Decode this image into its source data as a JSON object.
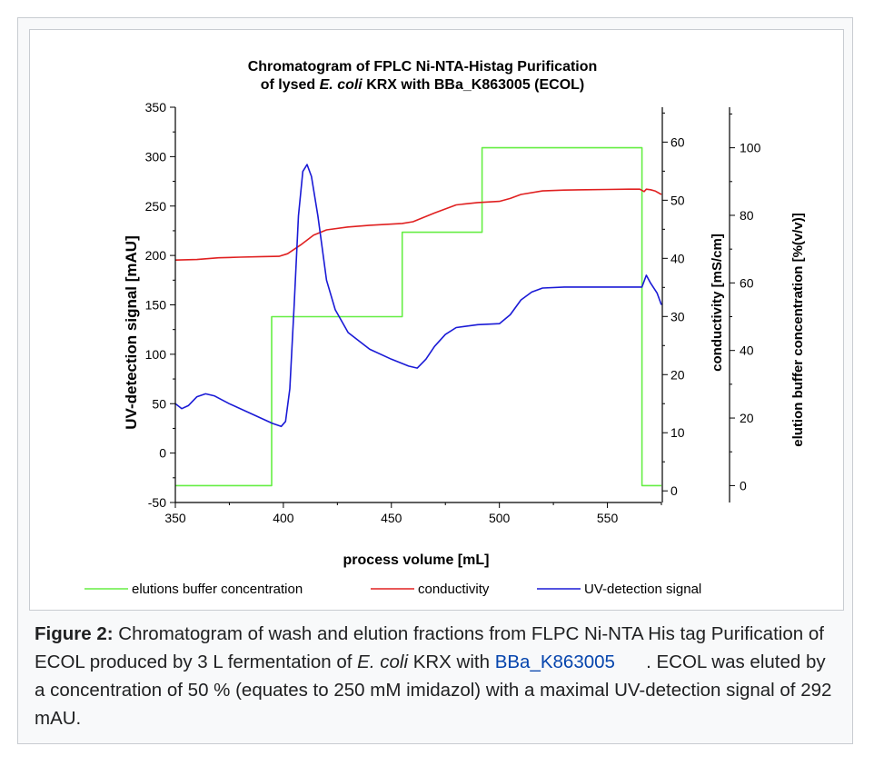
{
  "chart_data": {
    "type": "line",
    "title_line1": "Chromatogram of FPLC Ni-NTA-Histag Purification",
    "title_line2_pre": "of lysed ",
    "title_line2_italic": "E. coli",
    "title_line2_post": " KRX with BBa_K863005 (ECOL)",
    "xlabel": "process volume [mL]",
    "ylabel_left": "UV-detection signal [mAU]",
    "ylabel_right1": "conductivity [mS/cm]",
    "ylabel_right2": "elution buffer concentration [%(v/v)]",
    "xlim": [
      350,
      575
    ],
    "ylim_left": [
      -50,
      350
    ],
    "ylim_right1": [
      -2,
      66
    ],
    "ylim_right2": [
      -5,
      112
    ],
    "x_ticks": [
      "350",
      "400",
      "450",
      "500",
      "550"
    ],
    "left_ticks": [
      "-50",
      "0",
      "50",
      "100",
      "150",
      "200",
      "250",
      "300",
      "350"
    ],
    "right1_ticks": [
      "0",
      "10",
      "20",
      "30",
      "40",
      "50",
      "60"
    ],
    "right2_ticks": [
      "0",
      "20",
      "40",
      "60",
      "80",
      "100"
    ],
    "series": [
      {
        "name": "elutions buffer concentration",
        "color": "#66ee44",
        "axis": "right2",
        "x": [
          350,
          394.6,
          394.6,
          455,
          455,
          492,
          492,
          566,
          566,
          575
        ],
        "y": [
          0,
          0,
          50,
          50,
          75,
          75,
          100,
          100,
          0,
          0
        ]
      },
      {
        "name": "conductivity",
        "color": "#e02020",
        "axis": "right1",
        "x": [
          350,
          360,
          370,
          380,
          390,
          398,
          402,
          408,
          414,
          420,
          430,
          440,
          455,
          460,
          470,
          480,
          490,
          500,
          505,
          510,
          520,
          530,
          540,
          550,
          560,
          565,
          567,
          568,
          570,
          572,
          575
        ],
        "y": [
          39.7,
          39.8,
          40.1,
          40.2,
          40.3,
          40.35,
          40.8,
          42.3,
          44.0,
          44.9,
          45.4,
          45.7,
          46.0,
          46.3,
          47.8,
          49.2,
          49.6,
          49.8,
          50.3,
          51.0,
          51.6,
          51.75,
          51.8,
          51.85,
          51.9,
          51.9,
          51.5,
          51.9,
          51.8,
          51.6,
          51.0
        ]
      },
      {
        "name": "UV-detection signal",
        "color": "#1a1ad6",
        "axis": "left",
        "x": [
          350,
          353,
          356,
          360,
          364,
          368,
          375,
          385,
          395,
          399,
          401,
          403,
          405,
          407,
          409,
          411,
          413,
          416,
          420,
          424,
          430,
          440,
          450,
          458,
          462,
          466,
          470,
          475,
          480,
          490,
          500,
          505,
          510,
          515,
          520,
          530,
          540,
          550,
          560,
          566,
          568,
          570,
          573,
          575
        ],
        "y": [
          50,
          45,
          48,
          57,
          60,
          58,
          50,
          40,
          30,
          27,
          32,
          65,
          150,
          240,
          285,
          292,
          280,
          240,
          175,
          145,
          122,
          105,
          95,
          88,
          86,
          95,
          108,
          120,
          127,
          130,
          131,
          140,
          155,
          163,
          167,
          168,
          168,
          168,
          168,
          168,
          180,
          172,
          162,
          150
        ]
      }
    ]
  },
  "caption": {
    "label": "Figure 2:",
    "text1": " Chromatogram of wash and elution fractions from FLPC Ni-NTA His tag Purification of ECOL produced by 3 L fermentation of ",
    "italic": "E. coli",
    "text2": " KRX with ",
    "link": "BBa_K863005",
    "text3": "      . ECOL was eluted by a concentration of 50 % (equates to 250 mM imidazol) with a maximal UV-detection signal of 292 mAU."
  }
}
